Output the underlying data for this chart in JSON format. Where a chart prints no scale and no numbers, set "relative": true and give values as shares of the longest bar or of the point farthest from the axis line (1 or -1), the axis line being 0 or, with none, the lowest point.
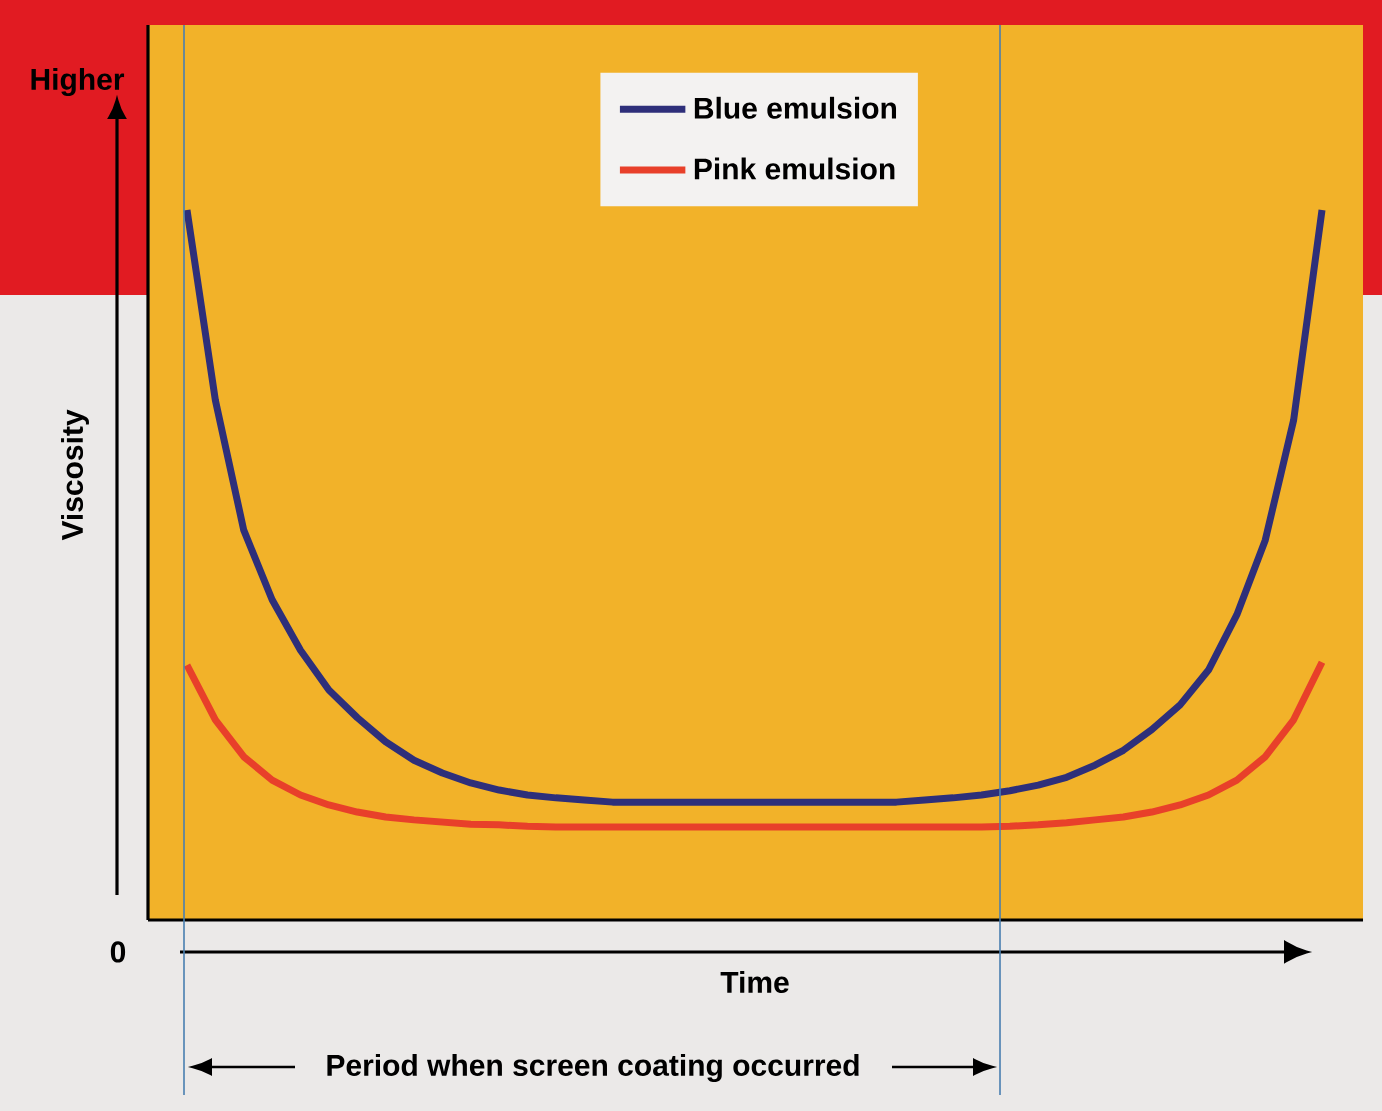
{
  "chart_data": {
    "type": "line",
    "relative": true,
    "xlabel": "Time",
    "ylabel": "Viscosity",
    "legend": "top",
    "categories": [
      null,
      null,
      null,
      null,
      null,
      null,
      null,
      null,
      null,
      null,
      null,
      null,
      null,
      null,
      null,
      null,
      null,
      null,
      null,
      null,
      null,
      null,
      null,
      null,
      null,
      null,
      null,
      null,
      null,
      null,
      null,
      null,
      null,
      null,
      null,
      null,
      null,
      null,
      null,
      null,
      null
    ],
    "series": [
      {
        "name": "Blue emulsion",
        "color": "#2e2f7a",
        "values": [
          1.0,
          0.732,
          0.549,
          0.451,
          0.38,
          0.324,
          0.285,
          0.251,
          0.225,
          0.207,
          0.193,
          0.183,
          0.176,
          0.172,
          0.169,
          0.166,
          0.166,
          0.166,
          0.166,
          0.166,
          0.166,
          0.166,
          0.166,
          0.166,
          0.166,
          0.166,
          0.169,
          0.172,
          0.176,
          0.182,
          0.19,
          0.201,
          0.218,
          0.239,
          0.268,
          0.303,
          0.352,
          0.43,
          0.535,
          0.704,
          1.0
        ]
      },
      {
        "name": "Pink emulsion",
        "color": "#e8402a",
        "values": [
          0.359,
          0.282,
          0.23,
          0.197,
          0.176,
          0.162,
          0.152,
          0.145,
          0.141,
          0.138,
          0.135,
          0.134,
          0.132,
          0.131,
          0.131,
          0.131,
          0.131,
          0.131,
          0.131,
          0.131,
          0.131,
          0.131,
          0.131,
          0.131,
          0.131,
          0.131,
          0.131,
          0.131,
          0.131,
          0.132,
          0.134,
          0.137,
          0.141,
          0.145,
          0.152,
          0.162,
          0.176,
          0.197,
          0.23,
          0.282,
          0.363
        ]
      }
    ],
    "annotations": [
      "Higher",
      "0",
      "Period when screen coating occurred"
    ]
  }
}
